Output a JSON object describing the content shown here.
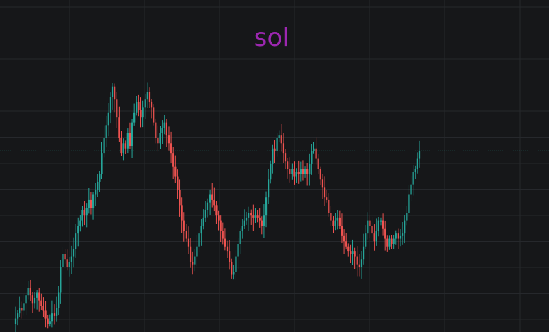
{
  "chart_data": {
    "type": "candlestick",
    "title": "sol",
    "xlabel": "",
    "ylabel": "",
    "ylim": [
      0,
      100
    ],
    "grid": true,
    "legend": "none",
    "last_price_line": true,
    "colors": {
      "background": "#161719",
      "grid": "#26282c",
      "up": "#26a69a",
      "down": "#ef5350",
      "title": "#9c27b0",
      "last_price_line": "#26a69a"
    },
    "closes": [
      2,
      4,
      6,
      5,
      8,
      11,
      14,
      11,
      8,
      10,
      12,
      9,
      7,
      5,
      2,
      0,
      1,
      4,
      3,
      6,
      12,
      22,
      27,
      25,
      22,
      24,
      26,
      29,
      35,
      38,
      40,
      44,
      42,
      45,
      48,
      45,
      50,
      52,
      55,
      58,
      66,
      72,
      77,
      82,
      88,
      92,
      87,
      80,
      72,
      66,
      70,
      68,
      74,
      69,
      78,
      82,
      86,
      83,
      80,
      84,
      87,
      90,
      86,
      84,
      78,
      72,
      70,
      74,
      76,
      78,
      73,
      70,
      66,
      61,
      57,
      52,
      46,
      40,
      36,
      33,
      30,
      24,
      23,
      26,
      30,
      35,
      38,
      41,
      44,
      47,
      50,
      48,
      46,
      42,
      40,
      36,
      33,
      30,
      28,
      24,
      19,
      20,
      26,
      31,
      36,
      38,
      40,
      41,
      43,
      42,
      41,
      42,
      41,
      40,
      38,
      42,
      49,
      56,
      62,
      68,
      67,
      72,
      73,
      70,
      66,
      63,
      60,
      58,
      60,
      57,
      59,
      58,
      60,
      58,
      60,
      58,
      62,
      67,
      68,
      64,
      60,
      56,
      53,
      49,
      48,
      43,
      40,
      38,
      40,
      41,
      38,
      34,
      32,
      30,
      28,
      27,
      28,
      26,
      23,
      22,
      25,
      30,
      35,
      40,
      38,
      35,
      32,
      36,
      40,
      40,
      37,
      33,
      30,
      33,
      31,
      33,
      35,
      33,
      34,
      35,
      40,
      43,
      50,
      54,
      59,
      60,
      64,
      67
    ]
  }
}
